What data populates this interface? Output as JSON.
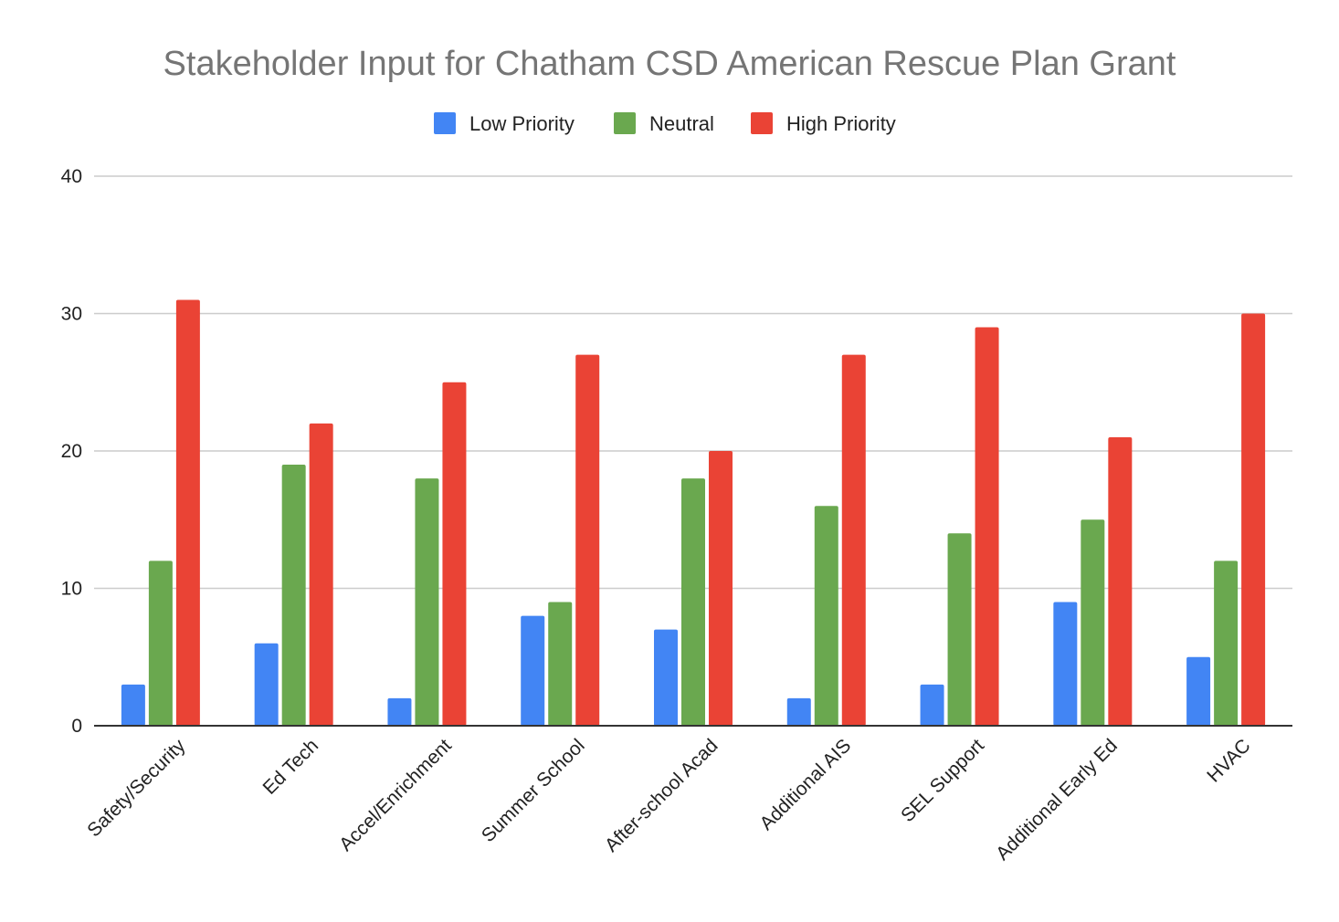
{
  "chart_data": {
    "type": "bar",
    "title": "Stakeholder Input for Chatham CSD American Rescue Plan Grant",
    "xlabel": "",
    "ylabel": "",
    "ylim": [
      0,
      40
    ],
    "yticks": [
      0,
      10,
      20,
      30,
      40
    ],
    "grid": true,
    "legend_position": "top-center",
    "categories": [
      "Safety/Security",
      "Ed Tech",
      "Accel/Enrichment",
      "Summer School",
      "After-school Acad",
      "Additional AIS",
      "SEL Support",
      "Additional Early Ed",
      "HVAC"
    ],
    "series": [
      {
        "name": "Low Priority",
        "color": "#4285f4",
        "values": [
          3,
          6,
          2,
          8,
          7,
          2,
          3,
          9,
          5
        ]
      },
      {
        "name": "Neutral",
        "color": "#6aa84f",
        "values": [
          12,
          19,
          18,
          9,
          18,
          16,
          14,
          15,
          12
        ]
      },
      {
        "name": "High Priority",
        "color": "#ea4335",
        "values": [
          31,
          22,
          25,
          27,
          20,
          27,
          29,
          21,
          30
        ]
      }
    ]
  }
}
